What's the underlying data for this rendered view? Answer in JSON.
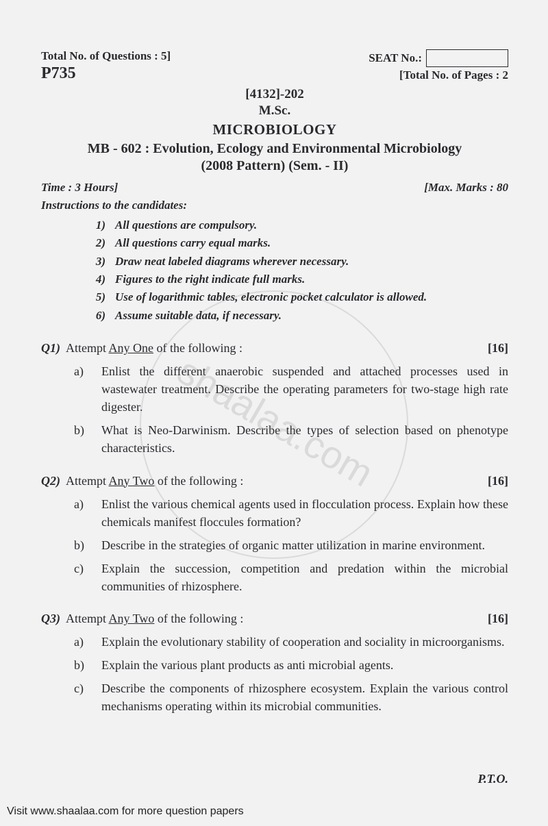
{
  "header": {
    "total_questions": "Total No. of Questions : 5]",
    "seat_label": "SEAT No.:",
    "paper_code": "P735",
    "total_pages": "[Total No. of Pages : 2",
    "paper_number": "[4132]-202",
    "degree": "M.Sc.",
    "subject": "MICROBIOLOGY",
    "course_title": "MB - 602 : Evolution, Ecology and Environmental Microbiology",
    "pattern": "(2008 Pattern) (Sem. - II)"
  },
  "meta": {
    "time": "Time : 3 Hours]",
    "marks": "[Max. Marks : 80"
  },
  "instructions": {
    "heading": "Instructions to the candidates:",
    "items": [
      {
        "n": "1)",
        "t": "All questions are compulsory."
      },
      {
        "n": "2)",
        "t": "All questions carry equal marks."
      },
      {
        "n": "3)",
        "t": "Draw neat labeled diagrams wherever necessary."
      },
      {
        "n": "4)",
        "t": "Figures to the right indicate full marks."
      },
      {
        "n": "5)",
        "t": "Use of logarithmic tables, electronic pocket calculator is allowed."
      },
      {
        "n": "6)",
        "t": "Assume suitable data, if necessary."
      }
    ]
  },
  "questions": [
    {
      "label": "Q1)",
      "prompt_pre": "Attempt ",
      "prompt_u": "Any One",
      "prompt_post": " of the following :",
      "marks": "[16]",
      "subs": [
        {
          "l": "a)",
          "t": "Enlist the different anaerobic suspended and attached processes used in wastewater treatment. Describe the operating parameters for two-stage high rate digester."
        },
        {
          "l": "b)",
          "t": "What is Neo-Darwinism. Describe the types of selection based on phenotype characteristics."
        }
      ]
    },
    {
      "label": "Q2)",
      "prompt_pre": "Attempt ",
      "prompt_u": "Any Two",
      "prompt_post": " of the following :",
      "marks": "[16]",
      "subs": [
        {
          "l": "a)",
          "t": "Enlist the various chemical agents used in flocculation process. Explain how these chemicals manifest floccules formation?"
        },
        {
          "l": "b)",
          "t": "Describe in the strategies of organic matter utilization in marine environment."
        },
        {
          "l": "c)",
          "t": "Explain the succession, competition and predation within the microbial communities of rhizosphere."
        }
      ]
    },
    {
      "label": "Q3)",
      "prompt_pre": "Attempt ",
      "prompt_u": "Any Two",
      "prompt_post": " of the following :",
      "marks": "[16]",
      "subs": [
        {
          "l": "a)",
          "t": "Explain the evolutionary stability of cooperation and sociality in microorganisms."
        },
        {
          "l": "b)",
          "t": "Explain the various plant products as anti microbial agents."
        },
        {
          "l": "c)",
          "t": "Describe the components of rhizosphere ecosystem. Explain the various control mechanisms operating within its microbial communities."
        }
      ]
    }
  ],
  "pto": "P.T.O.",
  "footer": "Visit www.shaalaa.com for more question papers",
  "watermark_text": "shaalaa.com",
  "colors": {
    "bg": "#f2f2f3",
    "text": "#2a2a2e",
    "watermark": "#888888"
  }
}
